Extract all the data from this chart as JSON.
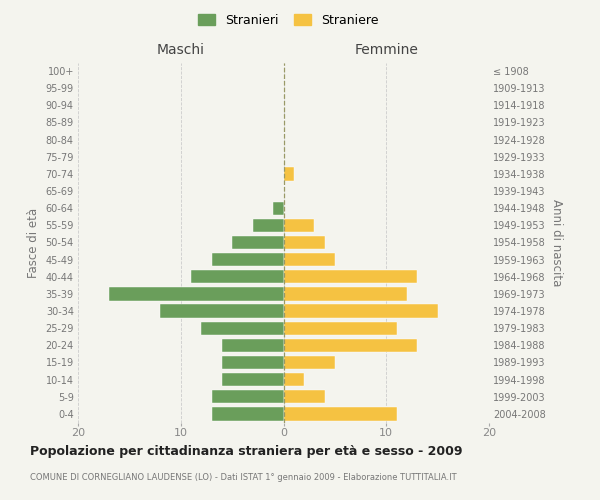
{
  "age_groups": [
    "100+",
    "95-99",
    "90-94",
    "85-89",
    "80-84",
    "75-79",
    "70-74",
    "65-69",
    "60-64",
    "55-59",
    "50-54",
    "45-49",
    "40-44",
    "35-39",
    "30-34",
    "25-29",
    "20-24",
    "15-19",
    "10-14",
    "5-9",
    "0-4"
  ],
  "birth_years": [
    "≤ 1908",
    "1909-1913",
    "1914-1918",
    "1919-1923",
    "1924-1928",
    "1929-1933",
    "1934-1938",
    "1939-1943",
    "1944-1948",
    "1949-1953",
    "1954-1958",
    "1959-1963",
    "1964-1968",
    "1969-1973",
    "1974-1978",
    "1979-1983",
    "1984-1988",
    "1989-1993",
    "1994-1998",
    "1999-2003",
    "2004-2008"
  ],
  "maschi": [
    0,
    0,
    0,
    0,
    0,
    0,
    0,
    0,
    1,
    3,
    5,
    7,
    9,
    17,
    12,
    8,
    6,
    6,
    6,
    7,
    7
  ],
  "femmine": [
    0,
    0,
    0,
    0,
    0,
    0,
    1,
    0,
    0,
    3,
    4,
    5,
    13,
    12,
    15,
    11,
    13,
    5,
    2,
    4,
    11
  ],
  "color_maschi": "#6a9e5b",
  "color_femmine": "#f5c242",
  "bg_color": "#f4f4ee",
  "grid_color": "#cccccc",
  "title": "Popolazione per cittadinanza straniera per età e sesso - 2009",
  "subtitle": "COMUNE DI CORNEGLIANO LAUDENSE (LO) - Dati ISTAT 1° gennaio 2009 - Elaborazione TUTTITALIA.IT",
  "label_maschi": "Maschi",
  "label_femmine": "Femmine",
  "legend_m": "Stranieri",
  "legend_f": "Straniere",
  "ylabel_left": "Fasce di età",
  "ylabel_right": "Anni di nascita",
  "xlim": 20
}
